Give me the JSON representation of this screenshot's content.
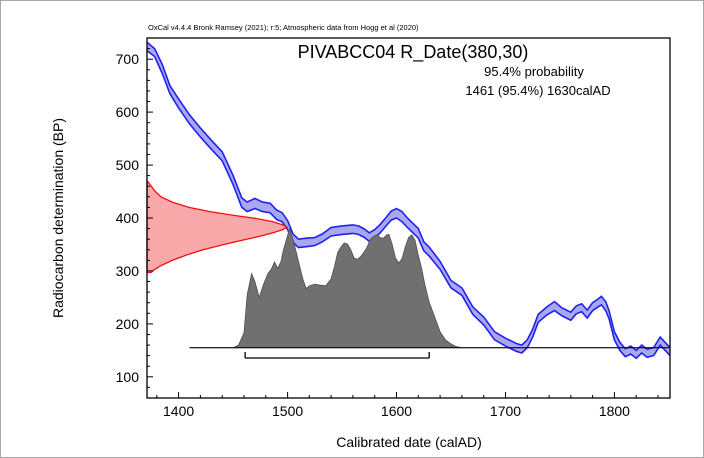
{
  "chart_data": {
    "type": "area",
    "header": "OxCal v4.4.4 Bronk Ramsey (2021); r:5; Atmospheric data from Hogg et al (2020)",
    "title": "PIVABCC04 R_Date(380,30)",
    "probability_label": "95.4% probability",
    "range_label": "1461 (95.4%) 1630calAD",
    "xlabel": "Calibrated date (calAD)",
    "ylabel": "Radiocarbon determination (BP)",
    "xlim": [
      1371,
      1851
    ],
    "ylim": [
      60,
      740
    ],
    "xticks": [
      1400,
      1500,
      1600,
      1700,
      1800
    ],
    "yticks": [
      100,
      200,
      300,
      400,
      500,
      600,
      700
    ],
    "colors": {
      "curve": "#2020ee",
      "curve_fill": "#a8a8f0",
      "radiocarbon": "#ee1111",
      "radiocarbon_fill": "#f8a8a8",
      "posterior": "#707070"
    },
    "calibration_curve": {
      "x": [
        1371,
        1378,
        1385,
        1392,
        1400,
        1410,
        1420,
        1430,
        1440,
        1450,
        1458,
        1463,
        1470,
        1477,
        1484,
        1490,
        1495,
        1500,
        1505,
        1510,
        1518,
        1525,
        1532,
        1540,
        1550,
        1560,
        1565,
        1570,
        1575,
        1580,
        1585,
        1590,
        1595,
        1600,
        1605,
        1610,
        1615,
        1620,
        1625,
        1630,
        1640,
        1650,
        1660,
        1670,
        1680,
        1690,
        1700,
        1710,
        1715,
        1720,
        1725,
        1730,
        1738,
        1745,
        1752,
        1760,
        1765,
        1770,
        1775,
        1780,
        1785,
        1788,
        1792,
        1795,
        1800,
        1805,
        1810,
        1815,
        1820,
        1825,
        1830,
        1836,
        1842,
        1851
      ],
      "upper": [
        732,
        720,
        690,
        650,
        625,
        595,
        570,
        547,
        525,
        480,
        438,
        430,
        437,
        430,
        428,
        415,
        410,
        395,
        370,
        360,
        362,
        363,
        370,
        382,
        385,
        387,
        385,
        380,
        372,
        378,
        388,
        400,
        413,
        418,
        412,
        400,
        390,
        380,
        355,
        345,
        318,
        282,
        268,
        232,
        213,
        185,
        173,
        163,
        160,
        170,
        190,
        218,
        232,
        242,
        230,
        222,
        234,
        238,
        226,
        240,
        247,
        252,
        242,
        225,
        185,
        165,
        153,
        158,
        150,
        160,
        152,
        155,
        175,
        155
      ],
      "lower": [
        716,
        705,
        673,
        635,
        608,
        578,
        553,
        530,
        508,
        463,
        420,
        412,
        418,
        412,
        410,
        397,
        393,
        378,
        354,
        344,
        346,
        348,
        355,
        366,
        369,
        371,
        369,
        364,
        356,
        362,
        372,
        384,
        396,
        400,
        393,
        382,
        372,
        362,
        338,
        328,
        303,
        268,
        254,
        218,
        198,
        170,
        158,
        148,
        145,
        155,
        175,
        203,
        217,
        225,
        215,
        207,
        219,
        223,
        211,
        225,
        232,
        236,
        225,
        210,
        170,
        150,
        138,
        143,
        135,
        145,
        137,
        140,
        160,
        140
      ]
    },
    "radiocarbon_distribution": {
      "bp": [
        297,
        302,
        310,
        320,
        330,
        340,
        350,
        358,
        365,
        372,
        378,
        383,
        387,
        393,
        399,
        405,
        412,
        420,
        430,
        440,
        450,
        460,
        466,
        470
      ],
      "density": [
        0.03,
        0.05,
        0.1,
        0.18,
        0.28,
        0.4,
        0.55,
        0.68,
        0.8,
        0.9,
        0.97,
        1.0,
        0.97,
        0.9,
        0.78,
        0.62,
        0.45,
        0.3,
        0.18,
        0.1,
        0.06,
        0.03,
        0.015,
        0.0
      ]
    },
    "posterior_distribution": {
      "baseline_bp": 155,
      "x": [
        1410,
        1450,
        1455,
        1460,
        1463,
        1467,
        1470,
        1474,
        1478,
        1482,
        1485,
        1488,
        1491,
        1494,
        1496,
        1499,
        1502,
        1505,
        1508,
        1511,
        1514,
        1517,
        1520,
        1525,
        1530,
        1535,
        1540,
        1543,
        1546,
        1549,
        1552,
        1555,
        1558,
        1561,
        1564,
        1567,
        1570,
        1573,
        1576,
        1579,
        1582,
        1585,
        1588,
        1591,
        1593,
        1596,
        1599,
        1602,
        1605,
        1608,
        1611,
        1614,
        1617,
        1620,
        1623,
        1626,
        1630,
        1635,
        1640,
        1645,
        1650,
        1655,
        1660,
        1850
      ],
      "height": [
        0,
        0,
        5,
        28,
        100,
        140,
        125,
        95,
        120,
        140,
        148,
        162,
        150,
        163,
        183,
        205,
        225,
        205,
        180,
        155,
        130,
        112,
        117,
        120,
        118,
        117,
        130,
        153,
        180,
        190,
        198,
        196,
        185,
        170,
        167,
        172,
        180,
        190,
        205,
        210,
        213,
        208,
        207,
        213,
        214,
        195,
        170,
        160,
        168,
        190,
        208,
        213,
        203,
        175,
        150,
        120,
        86,
        58,
        30,
        15,
        7,
        2,
        0,
        0
      ]
    },
    "range_bar": {
      "from": 1461,
      "to": 1630
    },
    "grid": false,
    "legend": "none"
  }
}
